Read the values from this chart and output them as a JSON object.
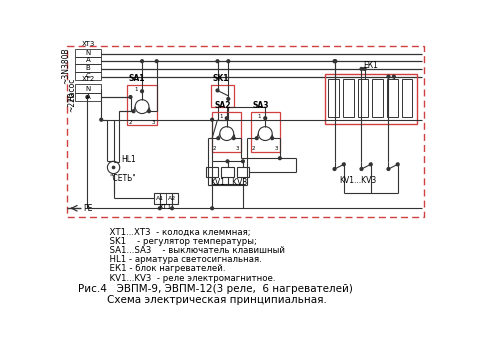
{
  "bg_color": "#ffffff",
  "line_color": "#333333",
  "red_box_color": "#d04040",
  "title_line1": "Рис.4   ЭВПМ-9, ЭВПМ-12(3 реле,  6 нагревателей)",
  "title_line2": "Схема электрическая принципиальная.",
  "legend_lines": [
    "  ХТ1...ХТ3  - колодка клеммная;",
    "  SK1    - регулятор температуры;",
    "  SA1...SA3    - выключатель клавишный",
    "  HL1 - арматура светосигнальная.",
    "  ЕК1 - блок нагревателей.",
    "  KV1...KV3  - реле электромагнитное."
  ]
}
